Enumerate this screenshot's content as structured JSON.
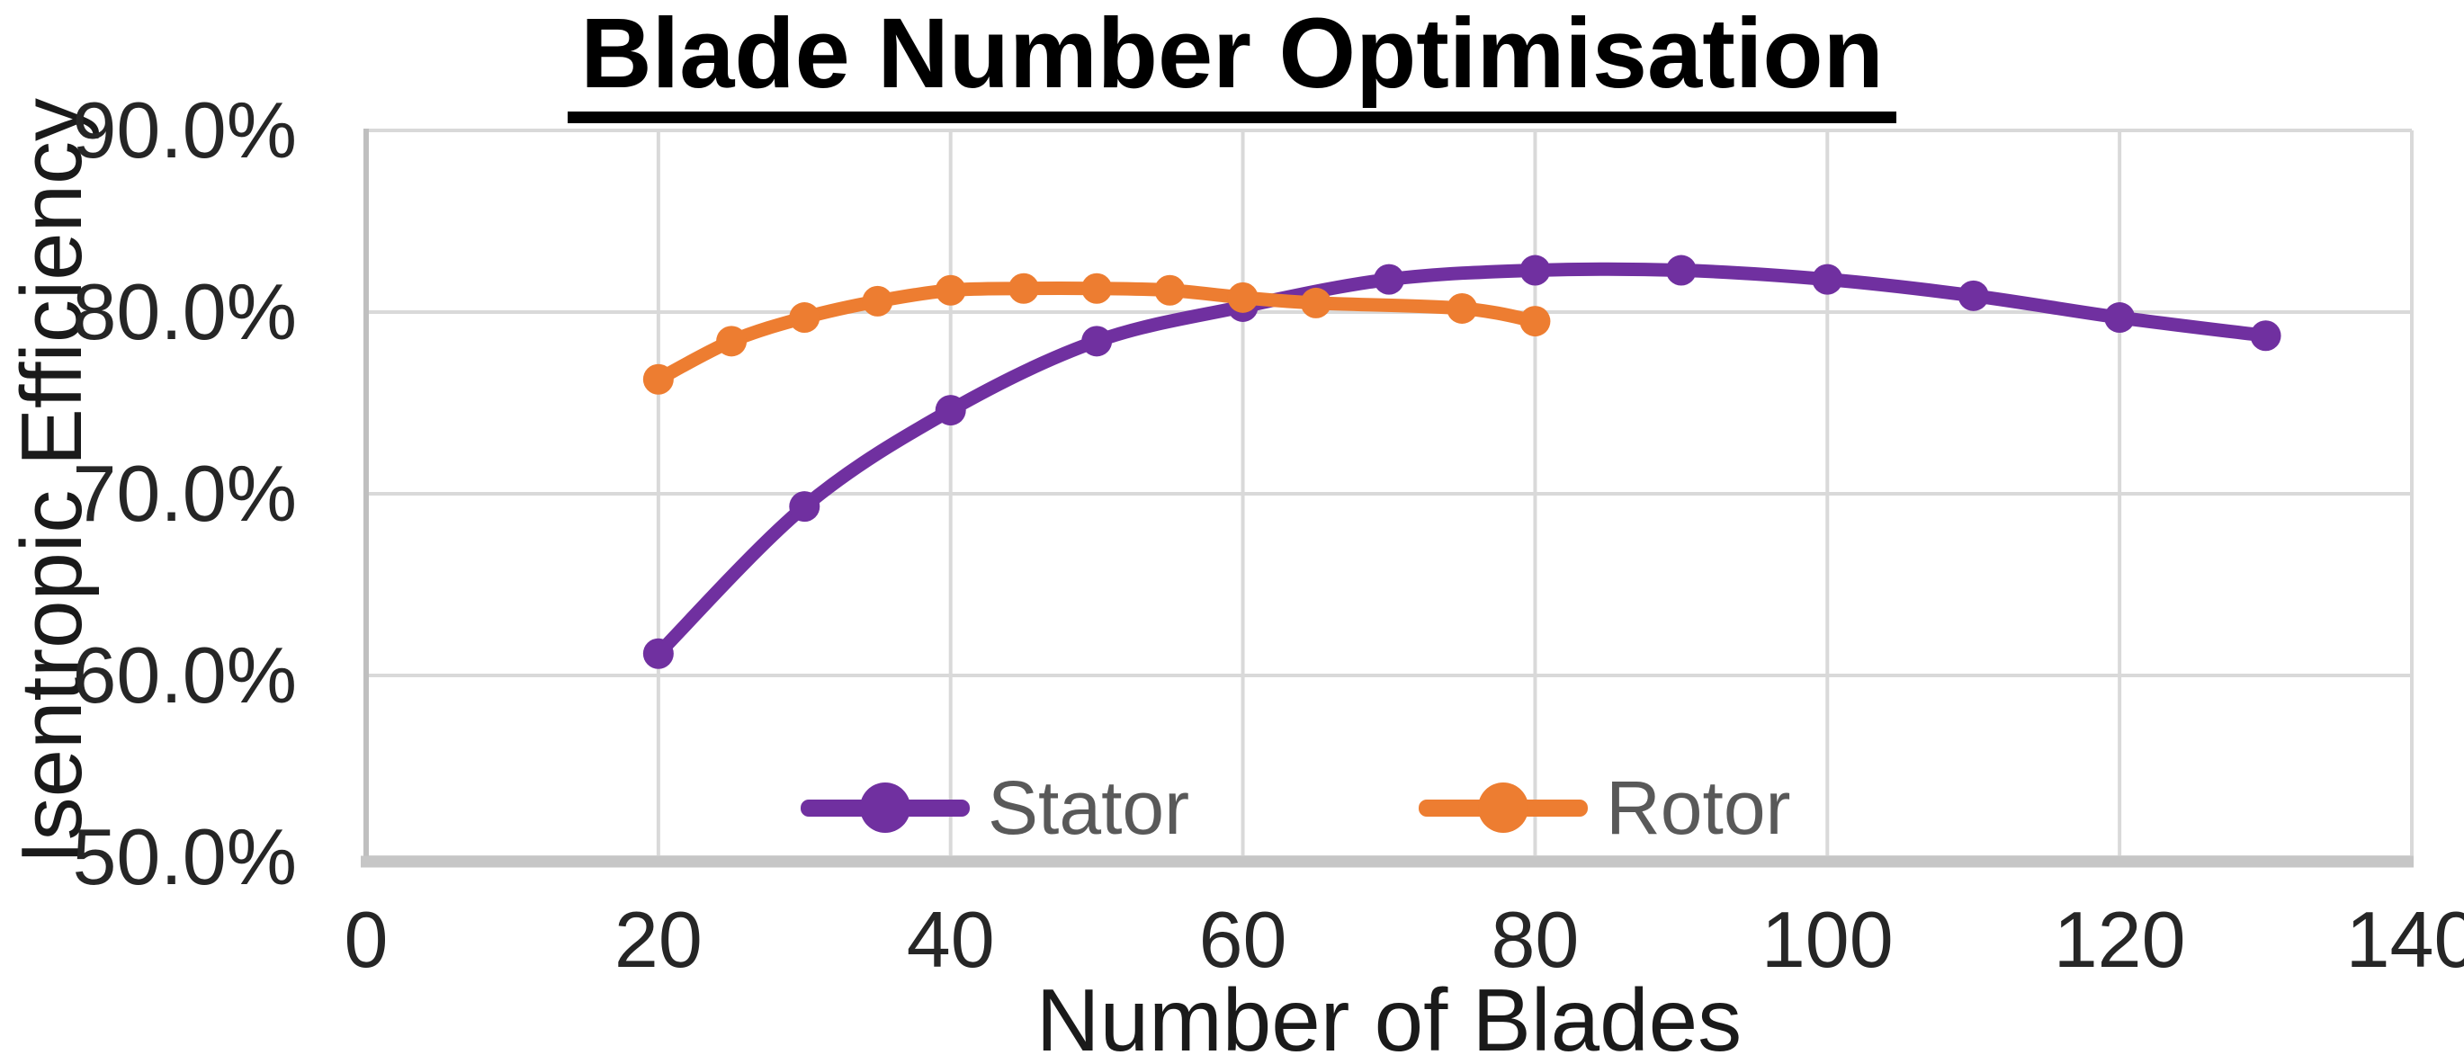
{
  "title": "Blade Number Optimisation",
  "colors": {
    "stator": "#7030A0",
    "rotor": "#ED7D31",
    "gridline": "#D9D9D9",
    "y_axis_line": "#BFBFBF",
    "x_axis_line": "#C6C6C6",
    "tick_label": "#262626",
    "axis_title": "#1a1a1a",
    "legend_text": "#595959",
    "title_text": "#000000"
  },
  "legend": {
    "items": [
      {
        "label": "Stator",
        "color": "#7030A0"
      },
      {
        "label": "Rotor",
        "color": "#ED7D31"
      }
    ]
  },
  "chart_data": {
    "type": "line",
    "title": "Blade Number Optimisation",
    "xlabel": "Number of Blades",
    "ylabel": "Isentropic Efficiency",
    "xlim": [
      0,
      140
    ],
    "ylim": [
      50,
      90
    ],
    "x_ticks": [
      0,
      20,
      40,
      60,
      80,
      100,
      120,
      140
    ],
    "x_tick_labels": [
      "0",
      "20",
      "40",
      "60",
      "80",
      "100",
      "120",
      "140"
    ],
    "y_ticks": [
      90,
      80,
      70,
      60,
      50
    ],
    "y_tick_labels": [
      "90.0%",
      "80.0%",
      "70.0%",
      "60.0%",
      "50.0%"
    ],
    "grid": true,
    "legend_position": "bottom-inside",
    "marker": "circle",
    "smooth_lines": true,
    "series": [
      {
        "name": "Stator",
        "color": "#7030A0",
        "points": [
          [
            20,
            61.2
          ],
          [
            30,
            69.3
          ],
          [
            40,
            74.6
          ],
          [
            50,
            78.4
          ],
          [
            60,
            80.3
          ],
          [
            70,
            81.8
          ],
          [
            80,
            82.3
          ],
          [
            90,
            82.3
          ],
          [
            100,
            81.8
          ],
          [
            110,
            80.9
          ],
          [
            120,
            79.7
          ],
          [
            130,
            78.7
          ]
        ]
      },
      {
        "name": "Rotor",
        "color": "#ED7D31",
        "points": [
          [
            20,
            76.3
          ],
          [
            25,
            78.4
          ],
          [
            30,
            79.7
          ],
          [
            35,
            80.6
          ],
          [
            40,
            81.2
          ],
          [
            45,
            81.3
          ],
          [
            50,
            81.3
          ],
          [
            55,
            81.2
          ],
          [
            60,
            80.8
          ],
          [
            65,
            80.5
          ],
          [
            75,
            80.2
          ],
          [
            80,
            79.5
          ]
        ]
      }
    ]
  }
}
